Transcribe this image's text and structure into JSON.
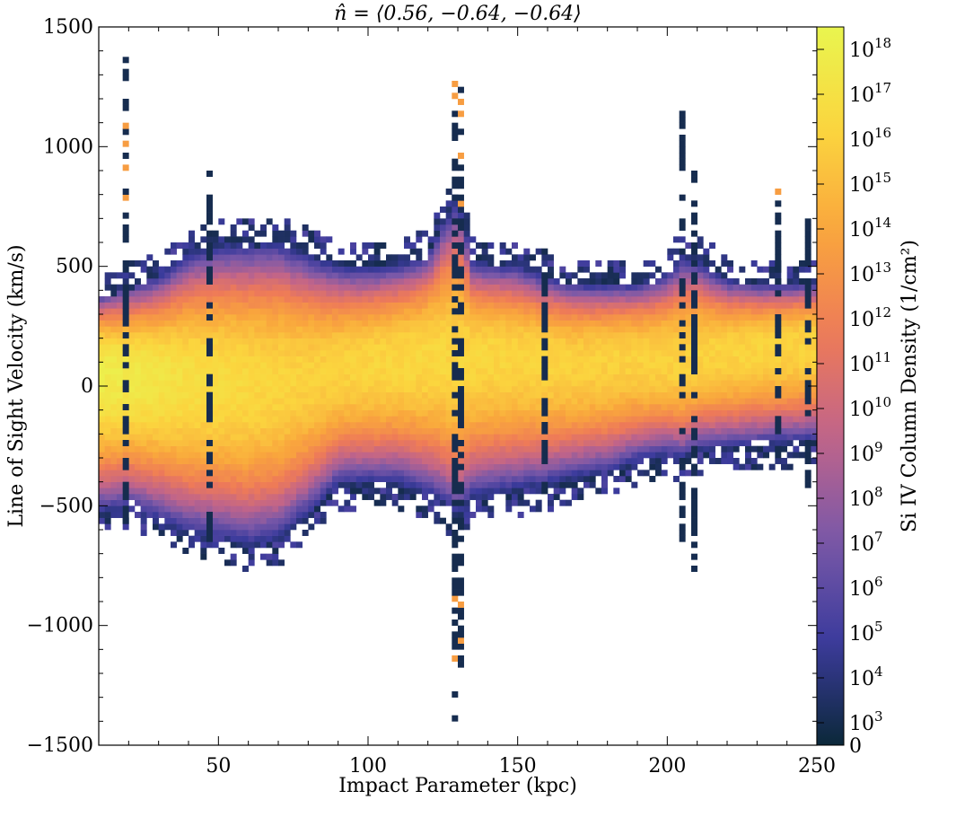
{
  "chart_data": {
    "type": "heatmap",
    "title": "n̂ = ⟨0.56, −0.64, −0.64⟩",
    "xlabel": "Impact Parameter (kpc)",
    "ylabel": "Line of Sight Velocity (km/s)",
    "xlim": [
      10,
      250
    ],
    "ylim": [
      -1500,
      1500
    ],
    "xticks": [
      50,
      100,
      150,
      200,
      250
    ],
    "yticks": [
      -1500,
      -1000,
      -500,
      0,
      500,
      1000,
      1500
    ],
    "xtick_labels": [
      "50",
      "100",
      "150",
      "200",
      "250"
    ],
    "ytick_labels": [
      "−1500",
      "−1000",
      "−500",
      "0",
      "500",
      "1000",
      "1500"
    ],
    "colorbar": {
      "label": "Si IV Column Density (1/cm²)",
      "scale": "symlog",
      "range": [
        0,
        3e+18
      ],
      "ticks": [
        0,
        1000.0,
        10000.0,
        100000.0,
        1000000.0,
        10000000.0,
        100000000.0,
        1000000000.0,
        10000000000.0,
        100000000000.0,
        1000000000000.0,
        10000000000000.0,
        100000000000000.0,
        1000000000000000.0,
        1e+16,
        1e+17,
        1e+18
      ],
      "tick_labels": [
        "0",
        "10^3",
        "10^4",
        "10^5",
        "10^6",
        "10^7",
        "10^8",
        "10^9",
        "10^10",
        "10^11",
        "10^12",
        "10^13",
        "10^14",
        "10^15",
        "10^16",
        "10^17",
        "10^18"
      ],
      "colormap": [
        "#0b2839",
        "#3b3b9c",
        "#7a58a8",
        "#c0648a",
        "#ee7a58",
        "#f9a53d",
        "#fbd53e",
        "#e9f54f"
      ]
    },
    "profile": {
      "description_points": "envelope of the velocity distribution vs impact parameter",
      "x": [
        10,
        20,
        30,
        40,
        50,
        60,
        70,
        80,
        90,
        100,
        110,
        120,
        125,
        130,
        135,
        140,
        150,
        160,
        170,
        180,
        190,
        200,
        205,
        210,
        220,
        230,
        240,
        250
      ],
      "center_velocity": [
        60,
        50,
        40,
        30,
        20,
        10,
        20,
        40,
        70,
        90,
        110,
        130,
        120,
        110,
        120,
        130,
        120,
        110,
        100,
        110,
        120,
        110,
        100,
        120,
        140,
        160,
        170,
        180
      ],
      "upper_edge": [
        380,
        420,
        460,
        560,
        600,
        610,
        620,
        570,
        520,
        510,
        520,
        560,
        700,
        800,
        540,
        520,
        520,
        470,
        440,
        440,
        440,
        480,
        560,
        540,
        460,
        440,
        440,
        440
      ],
      "lower_edge": [
        -520,
        -500,
        -560,
        -620,
        -650,
        -680,
        -660,
        -560,
        -430,
        -420,
        -420,
        -470,
        -500,
        -560,
        -480,
        -470,
        -450,
        -430,
        -400,
        -380,
        -330,
        -300,
        -320,
        -280,
        -270,
        -260,
        -250,
        -240
      ],
      "peak_log_density": [
        17.8,
        17.6,
        17.2,
        16.8,
        16.6,
        16.4,
        16.2,
        16.0,
        16.0,
        16.2,
        16.3,
        16.4,
        16.3,
        16.2,
        16.3,
        16.3,
        16.2,
        16.1,
        16.0,
        16.0,
        16.0,
        16.1,
        15.9,
        16.0,
        16.1,
        16.2,
        16.1,
        16.2
      ]
    },
    "spikes": [
      {
        "x": 18,
        "vmin": -600,
        "vmax": 1350
      },
      {
        "x": 47,
        "vmin": -650,
        "vmax": 900
      },
      {
        "x": 128,
        "vmin": -1380,
        "vmax": 1300
      },
      {
        "x": 131,
        "vmin": -1250,
        "vmax": 1300
      },
      {
        "x": 159,
        "vmin": -450,
        "vmax": 450
      },
      {
        "x": 205,
        "vmin": -800,
        "vmax": 1140
      },
      {
        "x": 208,
        "vmin": -800,
        "vmax": 900
      },
      {
        "x": 236,
        "vmin": -300,
        "vmax": 820
      },
      {
        "x": 247,
        "vmin": -420,
        "vmax": 700
      }
    ]
  }
}
